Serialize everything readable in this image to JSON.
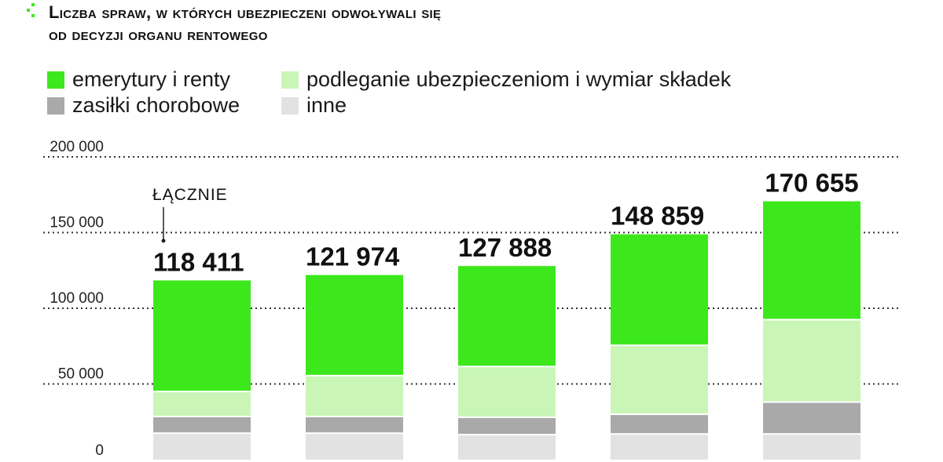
{
  "title": {
    "line1": "Liczba spraw, w których ubezpieczeni odwoływali się",
    "line2": "od decyzji organu rentowego"
  },
  "annotation": "ŁĄCZNIE",
  "colors": {
    "emerytury": "#3ce81c",
    "podleganie": "#c9f6b6",
    "zasilki": "#a9a9a9",
    "inne": "#e2e2e2",
    "marker": "#3ce81c"
  },
  "chart_data": {
    "type": "bar",
    "stacked": true,
    "categories": [
      "",
      "",
      "",
      "",
      ""
    ],
    "totals": [
      "118 411",
      "121 974",
      "127 888",
      "148 859",
      "170 655"
    ],
    "series": [
      {
        "name": "inne",
        "values": [
          17500,
          17500,
          16500,
          17000,
          17000
        ]
      },
      {
        "name": "zasiłki chorobowe",
        "values": [
          11000,
          11000,
          11500,
          13000,
          21000
        ]
      },
      {
        "name": "podleganie ubezpieczeniom i wymiar składek",
        "values": [
          16500,
          27000,
          33500,
          45500,
          54500
        ]
      },
      {
        "name": "emerytury i renty",
        "values": [
          73411,
          66474,
          66388,
          73359,
          78155
        ]
      }
    ],
    "y_ticks": [
      "0",
      "50 000",
      "100 000",
      "150 000",
      "200 000"
    ],
    "ylim": [
      0,
      200000
    ],
    "grid": "dotted horizontal",
    "legend_position": "top"
  }
}
